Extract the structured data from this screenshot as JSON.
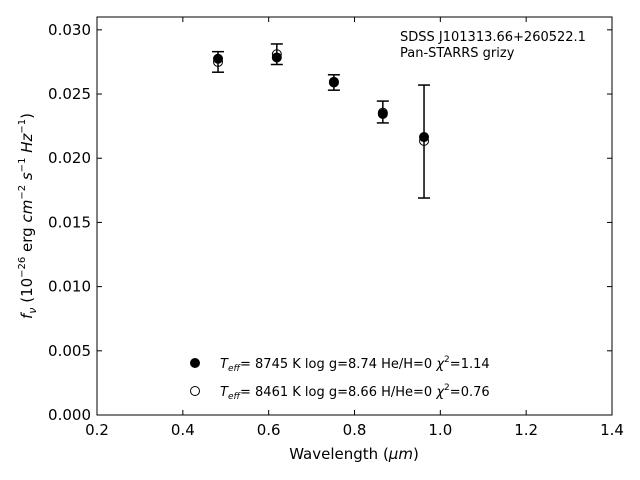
{
  "chart_data": {
    "type": "scatter",
    "title": "",
    "xlabel": {
      "prefix": "Wavelength (",
      "unit": "μm",
      "suffix": ")"
    },
    "ylabel": {
      "text": "f_ν (10^-26 erg cm^-2 s^-1 Hz^-1)"
    },
    "xlim": [
      0.2,
      1.4
    ],
    "ylim": [
      0.0,
      0.031
    ],
    "grid": false,
    "legend_position": "bottom-center",
    "x_ticks": [
      0.2,
      0.4,
      0.6,
      0.8,
      1.0,
      1.2,
      1.4
    ],
    "x_tick_labels": [
      "0.2",
      "0.4",
      "0.6",
      "0.8",
      "1.0",
      "1.2",
      "1.4"
    ],
    "y_ticks": [
      0.0,
      0.005,
      0.01,
      0.015,
      0.02,
      0.025,
      0.03
    ],
    "y_tick_labels": [
      "0.000",
      "0.005",
      "0.010",
      "0.015",
      "0.020",
      "0.025",
      "0.030"
    ],
    "annotation": [
      "SDSS J101313.66+260522.1",
      "Pan-STARRS grizy"
    ],
    "observed": {
      "x": [
        0.482,
        0.619,
        0.752,
        0.866,
        0.962
      ],
      "y": [
        0.0275,
        0.0281,
        0.0259,
        0.0236,
        0.0213
      ],
      "err": [
        0.0008,
        0.0008,
        0.0006,
        0.00085,
        0.0044
      ]
    },
    "series": [
      {
        "marker": "filled",
        "legend": {
          "teff": "8745 K",
          "logg": "8.74",
          "comp": "He/H=0",
          "chi2": "1.14"
        },
        "x": [
          0.482,
          0.619,
          0.752,
          0.866,
          0.962
        ],
        "y": [
          0.02775,
          0.02785,
          0.02595,
          0.02345,
          0.02165
        ]
      },
      {
        "marker": "open",
        "legend": {
          "teff": "8461 K",
          "logg": "8.66",
          "comp": "H/He=0",
          "chi2": "0.76"
        },
        "x": [
          0.482,
          0.619,
          0.752,
          0.866,
          0.962
        ],
        "y": [
          0.0275,
          0.0281,
          0.0259,
          0.02355,
          0.02135
        ]
      }
    ]
  }
}
